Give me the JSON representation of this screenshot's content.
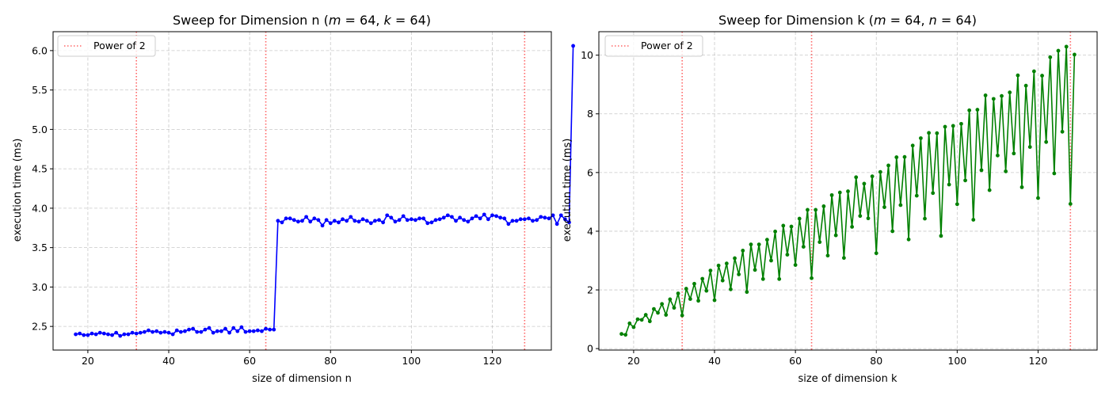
{
  "chart_data": [
    {
      "type": "line",
      "title": "Sweep for Dimension n (m = 64, k = 64)",
      "title_parts": {
        "prefix": "Sweep for Dimension n (",
        "m": "m",
        "m_eq": " = 64, ",
        "k": "k",
        "k_eq": " = 64)"
      },
      "xlabel": "size of dimension n",
      "ylabel": "execution time (ms)",
      "xlim": [
        11.4,
        134.6
      ],
      "ylim": [
        2.2,
        6.24
      ],
      "xticks": [
        20,
        40,
        60,
        80,
        100,
        120
      ],
      "yticks": [
        2.5,
        3.0,
        3.5,
        4.0,
        4.5,
        5.0,
        5.5,
        6.0
      ],
      "ytick_labels": [
        "2.5",
        "3.0",
        "3.5",
        "4.0",
        "4.5",
        "5.0",
        "5.5",
        "6.0"
      ],
      "grid": true,
      "legend": {
        "position": "upper left",
        "entries": [
          {
            "label": "Power of 2",
            "color": "#ff6666",
            "style": "dotted"
          }
        ]
      },
      "vlines": [
        32,
        64,
        128
      ],
      "series": [
        {
          "color": "#0000ff",
          "x_start": 17,
          "values": [
            2.4,
            2.41,
            2.39,
            2.39,
            2.41,
            2.4,
            2.42,
            2.41,
            2.4,
            2.39,
            2.42,
            2.38,
            2.4,
            2.4,
            2.42,
            2.41,
            2.42,
            2.43,
            2.45,
            2.43,
            2.44,
            2.42,
            2.43,
            2.42,
            2.4,
            2.45,
            2.43,
            2.44,
            2.46,
            2.47,
            2.43,
            2.43,
            2.46,
            2.48,
            2.42,
            2.44,
            2.44,
            2.47,
            2.42,
            2.48,
            2.44,
            2.49,
            2.43,
            2.44,
            2.44,
            2.45,
            2.44,
            2.47,
            2.46,
            2.46,
            3.84,
            3.82,
            3.87,
            3.87,
            3.85,
            3.83,
            3.84,
            3.89,
            3.83,
            3.87,
            3.85,
            3.78,
            3.85,
            3.81,
            3.84,
            3.82,
            3.86,
            3.84,
            3.89,
            3.84,
            3.83,
            3.86,
            3.84,
            3.81,
            3.84,
            3.85,
            3.82,
            3.91,
            3.88,
            3.83,
            3.85,
            3.9,
            3.85,
            3.86,
            3.85,
            3.87,
            3.87,
            3.81,
            3.82,
            3.85,
            3.86,
            3.88,
            3.91,
            3.89,
            3.84,
            3.88,
            3.85,
            3.83,
            3.87,
            3.9,
            3.87,
            3.92,
            3.86,
            3.91,
            3.9,
            3.88,
            3.87,
            3.8,
            3.84,
            3.84,
            3.86,
            3.86,
            3.87,
            3.84,
            3.85,
            3.89,
            3.88,
            3.87,
            3.91,
            3.8,
            3.91,
            3.86,
            3.82,
            6.06
          ]
        }
      ]
    },
    {
      "type": "line",
      "title": "Sweep for Dimension k (m = 64, n = 64)",
      "title_parts": {
        "prefix": "Sweep for Dimension k (",
        "m": "m",
        "m_eq": " = 64, ",
        "k": "n",
        "k_eq": " = 64)"
      },
      "xlabel": "size of dimension k",
      "ylabel": "execution time (ms)",
      "xlim": [
        11.4,
        134.6
      ],
      "ylim": [
        -0.05,
        10.8
      ],
      "xticks": [
        20,
        40,
        60,
        80,
        100,
        120
      ],
      "yticks": [
        0,
        2,
        4,
        6,
        8,
        10
      ],
      "ytick_labels": [
        "0",
        "2",
        "4",
        "6",
        "8",
        "10"
      ],
      "grid": true,
      "legend": {
        "position": "upper left",
        "entries": [
          {
            "label": "Power of 2",
            "color": "#ff6666",
            "style": "dotted"
          }
        ]
      },
      "vlines": [
        32,
        64,
        128
      ],
      "series": [
        {
          "color": "#008000",
          "x_start": 17,
          "values": [
            0.5,
            0.47,
            0.86,
            0.73,
            1.0,
            0.98,
            1.15,
            0.93,
            1.35,
            1.22,
            1.52,
            1.15,
            1.68,
            1.39,
            1.88,
            1.13,
            2.04,
            1.69,
            2.21,
            1.63,
            2.38,
            1.97,
            2.66,
            1.65,
            2.83,
            2.32,
            2.9,
            2.02,
            3.08,
            2.53,
            3.34,
            1.93,
            3.55,
            2.68,
            3.55,
            2.37,
            3.71,
            3.0,
            3.99,
            2.37,
            4.19,
            3.2,
            4.16,
            2.85,
            4.43,
            3.47,
            4.73,
            2.4,
            4.73,
            3.63,
            4.85,
            3.17,
            5.23,
            3.86,
            5.32,
            3.09,
            5.36,
            4.15,
            5.84,
            4.52,
            5.62,
            4.44,
            5.87,
            3.25,
            6.02,
            4.82,
            6.24,
            4.0,
            6.52,
            4.89,
            6.53,
            3.72,
            6.92,
            5.21,
            7.17,
            4.43,
            7.35,
            5.3,
            7.34,
            3.84,
            7.56,
            5.59,
            7.59,
            4.92,
            7.66,
            5.73,
            8.12,
            4.39,
            8.14,
            6.08,
            8.63,
            5.4,
            8.51,
            6.58,
            8.61,
            6.04,
            8.73,
            6.65,
            9.31,
            5.5,
            8.96,
            6.87,
            9.45,
            5.13,
            9.3,
            7.04,
            9.93,
            5.97,
            10.15,
            7.39,
            10.29,
            4.93,
            10.02
          ]
        }
      ]
    }
  ]
}
